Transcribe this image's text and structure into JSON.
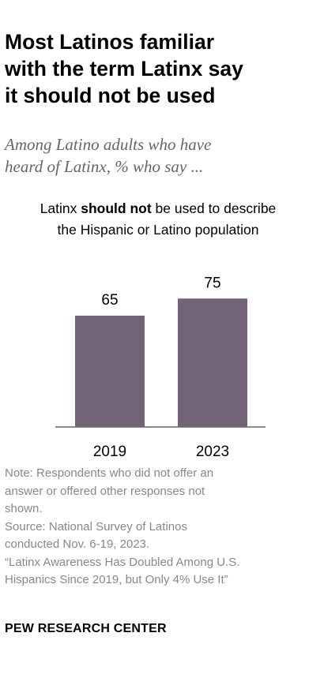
{
  "title": "Most Latinos familiar\nwith the term Latinx say\nit should not be used",
  "subtitle": "Among Latino adults who have\nheard of Latinx, % who say ...",
  "chart_heading": {
    "before": "Latinx ",
    "bold": "should not",
    "after": " be used to describe",
    "line2": "the Hispanic or Latino population"
  },
  "chart_data": {
    "type": "bar",
    "categories": [
      "2019",
      "2023"
    ],
    "values": [
      65,
      75
    ],
    "bar_color": "#736377",
    "axis_color": "#8a8a8a",
    "ylim": [
      0,
      100
    ]
  },
  "note": {
    "note": "Note: Respondents who did not offer an\nanswer or offered other responses not\nshown.",
    "source": "Source: National Survey of Latinos\nconducted Nov. 6-19, 2023.",
    "report": "“Latinx Awareness Has Doubled Among U.S.\nHispanics Since 2019, but Only 4% Use It”"
  },
  "brand": "PEW RESEARCH CENTER"
}
